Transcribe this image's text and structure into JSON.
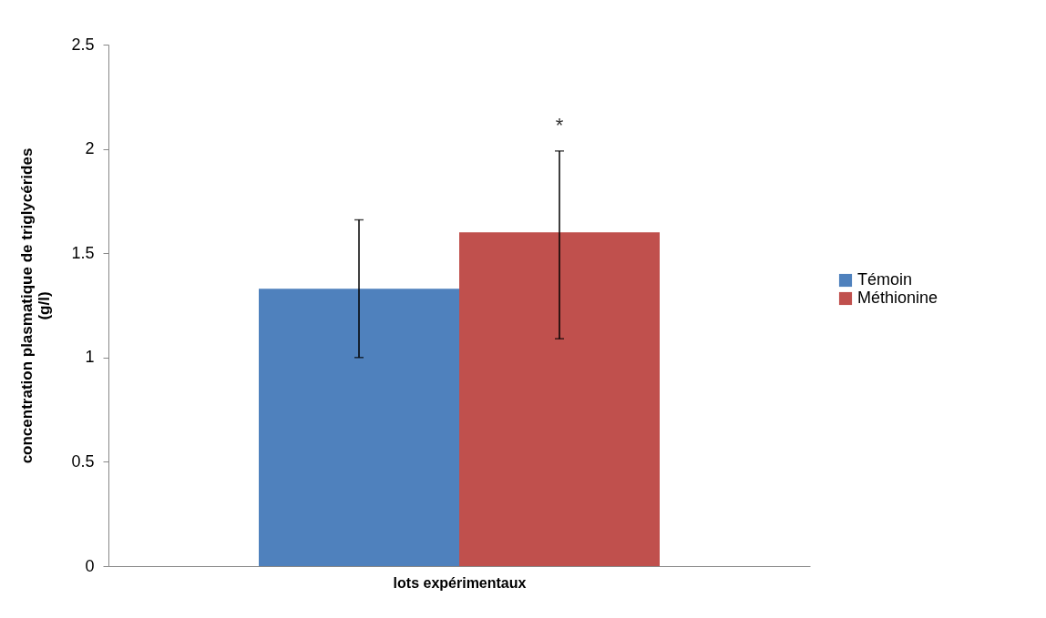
{
  "chart_data": {
    "type": "bar",
    "xlabel": "lots expérimentaux",
    "ylabel": "concentration plasmatique de triglycérides (g/l)",
    "categories": [
      null
    ],
    "series": [
      {
        "name": "Témoin",
        "color": "#4f81bd",
        "values": [
          1.33
        ],
        "errors": [
          [
            1.0,
            1.66
          ]
        ]
      },
      {
        "name": "Méthionine",
        "color": "#c0504d",
        "values": [
          1.6
        ],
        "errors": [
          [
            1.09,
            1.99
          ]
        ]
      }
    ],
    "ylim": [
      0,
      2.5
    ],
    "yticks": [
      0,
      0.5,
      1,
      1.5,
      2,
      2.5
    ],
    "annotations": [
      "*"
    ],
    "legend": "right",
    "grid": false,
    "tick_labels": "y"
  }
}
